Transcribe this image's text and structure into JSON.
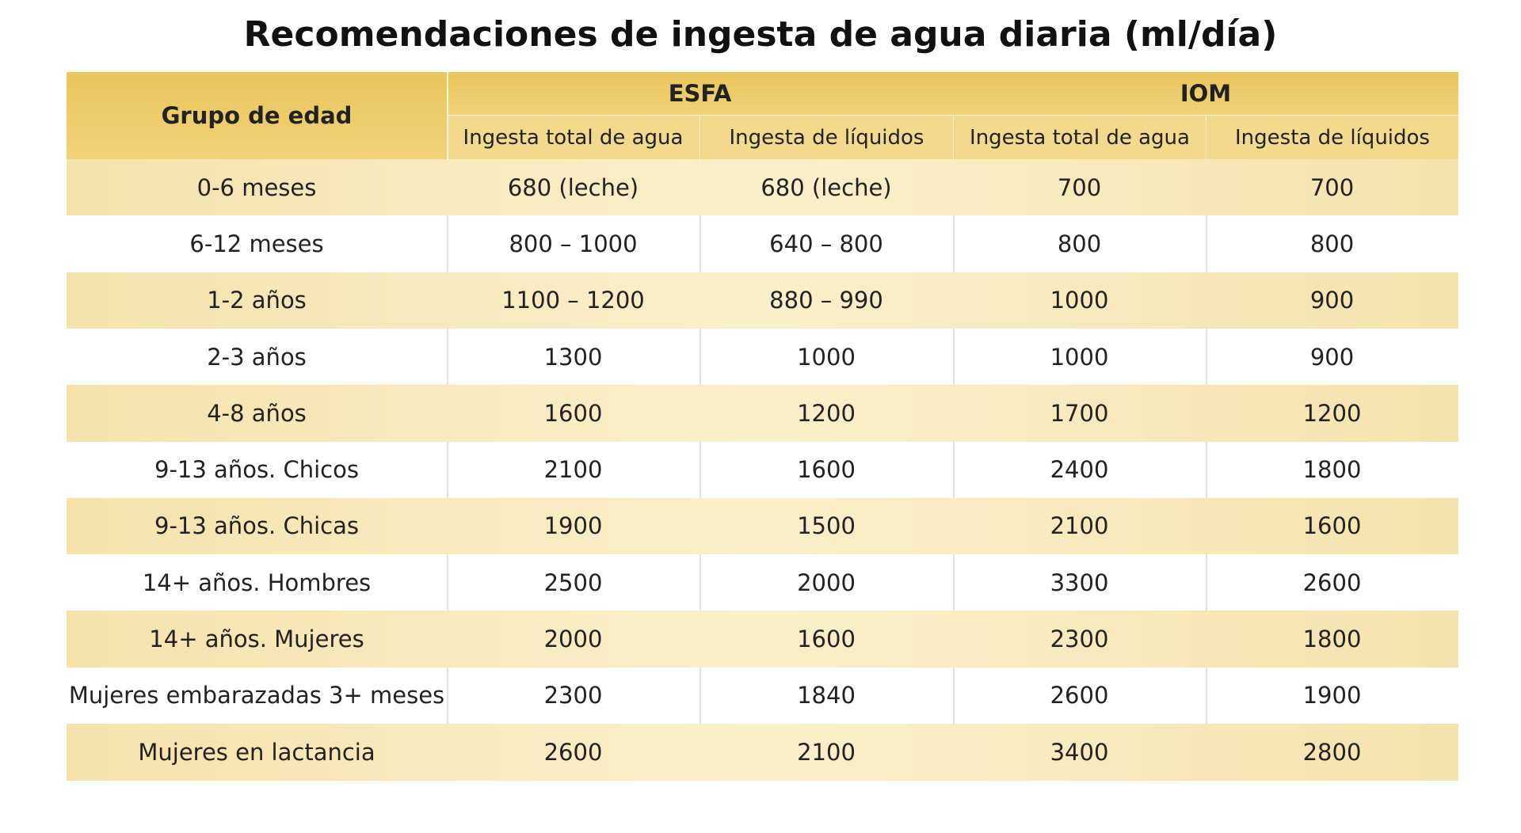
{
  "title": "Recomendaciones de ingesta de agua diaria (ml/día)",
  "table": {
    "row_header": "Grupo de edad",
    "groups": [
      {
        "name": "ESFA",
        "columns": [
          "Ingesta total de agua",
          "Ingesta de líquidos"
        ]
      },
      {
        "name": "IOM",
        "columns": [
          "Ingesta total de agua",
          "Ingesta de líquidos"
        ]
      }
    ],
    "rows": [
      [
        "0-6 meses",
        "680 (leche)",
        "680 (leche)",
        "700",
        "700"
      ],
      [
        "6-12 meses",
        "800 – 1000",
        "640 – 800",
        "800",
        "800"
      ],
      [
        "1-2 años",
        "1100 – 1200",
        "880 – 990",
        "1000",
        "900"
      ],
      [
        "2-3 años",
        "1300",
        "1000",
        "1000",
        "900"
      ],
      [
        "4-8 años",
        "1600",
        "1200",
        "1700",
        "1200"
      ],
      [
        "9-13 años. Chicos",
        "2100",
        "1600",
        "2400",
        "1800"
      ],
      [
        "9-13 años. Chicas",
        "1900",
        "1500",
        "2100",
        "1600"
      ],
      [
        "14+ años. Hombres",
        "2500",
        "2000",
        "3300",
        "2600"
      ],
      [
        "14+ años. Mujeres",
        "2000",
        "1600",
        "2300",
        "1800"
      ],
      [
        "Mujeres embarazadas 3+ meses",
        "2300",
        "1840",
        "2600",
        "1900"
      ],
      [
        "Mujeres en lactancia",
        "2600",
        "2100",
        "3400",
        "2800"
      ]
    ]
  }
}
